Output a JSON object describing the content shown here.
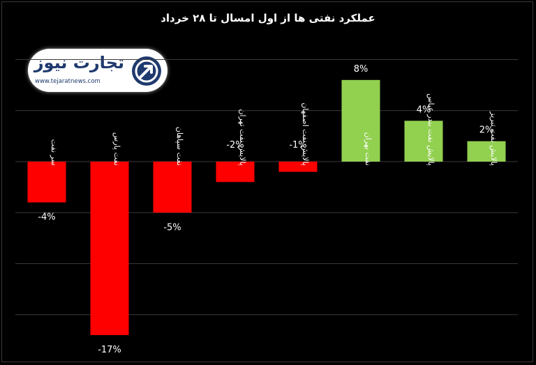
{
  "title": "عملکرد نفتی ها از اول امسال  تا ۲۸ خرداد",
  "logo": {
    "wordmark": "تجارت نیوز",
    "url": "www.tejaratnews.com"
  },
  "colors": {
    "negative": "#ff0000",
    "positive": "#92d050",
    "grid": "#3a3a3a",
    "text": "#ffffff",
    "background": "#000000"
  },
  "chart_data": {
    "type": "bar",
    "categories": [
      "سر نفت",
      "نفت پارس",
      "نفت سپاهان",
      "پالایش نفت تهران",
      "پالایش نفت اصفهان",
      "نفت بهران",
      "پالایش نفت بندر عباس",
      "پالایش نفت تبریز"
    ],
    "values": [
      -4,
      -17,
      -5,
      -2,
      -1,
      8,
      4,
      2
    ],
    "data_labels": [
      "-4%",
      "-17%",
      "-5%",
      "-2%",
      "-1%",
      "8%",
      "4%",
      "2%"
    ],
    "title": "عملکرد نفتی ها از اول امسال  تا ۲۸ خرداد",
    "ylim": [
      -20,
      10
    ],
    "grid": true,
    "legend": "none"
  }
}
